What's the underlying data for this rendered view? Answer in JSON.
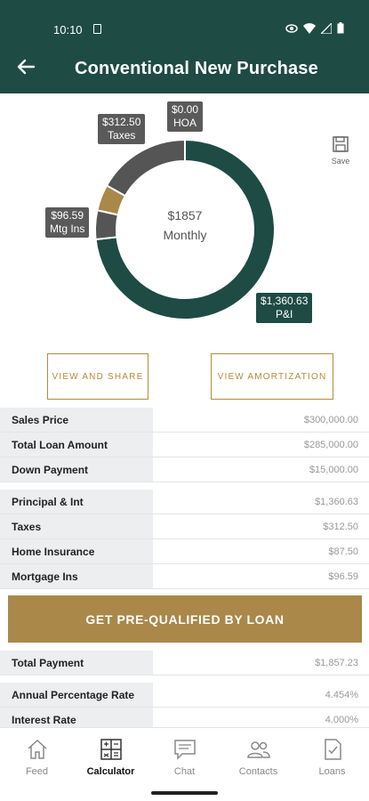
{
  "status_bar": {
    "time": "10:10"
  },
  "header": {
    "title": "Conventional New Purchase"
  },
  "chart_data": {
    "type": "pie",
    "donut": true,
    "center_amount": "$1857",
    "center_label": "Monthly",
    "slices": [
      {
        "name": "P&I",
        "label": "$1,360.63",
        "value": 1360.63,
        "color": "#1f4b45"
      },
      {
        "name": "Mtg Ins",
        "label": "$96.59",
        "value": 96.59,
        "color": "#555555"
      },
      {
        "name": "Home Insurance",
        "label": "",
        "value": 87.5,
        "color": "#a9884a"
      },
      {
        "name": "Taxes",
        "label": "$312.50",
        "value": 312.5,
        "color": "#555555"
      },
      {
        "name": "HOA",
        "label": "$0.00",
        "value": 0.0,
        "color": "#666666"
      }
    ]
  },
  "tags": {
    "taxes": {
      "amount": "$312.50",
      "name": "Taxes"
    },
    "hoa": {
      "amount": "$0.00",
      "name": "HOA"
    },
    "mtg_ins": {
      "amount": "$96.59",
      "name": "Mtg Ins"
    },
    "pi": {
      "amount": "$1,360.63",
      "name": "P&I"
    }
  },
  "save_label": "Save",
  "buttons": {
    "view_share": "VIEW AND SHARE",
    "view_amortization": "VIEW AMORTIZATION",
    "pre_qualified": "GET PRE-QUALIFIED BY LOAN"
  },
  "loan_rows": [
    {
      "label": "Sales Price",
      "value": "$300,000.00"
    },
    {
      "label": "Total Loan Amount",
      "value": "$285,000.00"
    },
    {
      "label": "Down Payment",
      "value": "$15,000.00"
    }
  ],
  "payment_rows": [
    {
      "label": "Principal & Int",
      "value": "$1,360.63"
    },
    {
      "label": "Taxes",
      "value": "$312.50"
    },
    {
      "label": "Home Insurance",
      "value": "$87.50"
    },
    {
      "label": "Mortgage Ins",
      "value": "$96.59"
    }
  ],
  "total_row": {
    "label": "Total Payment",
    "value": "$1,857.23"
  },
  "rate_rows": [
    {
      "label": "Annual Percentage Rate",
      "value": "4.454%"
    },
    {
      "label": "Interest Rate",
      "value": "4.000%"
    }
  ],
  "nav": [
    {
      "label": "Feed",
      "icon": "home-icon",
      "active": false
    },
    {
      "label": "Calculator",
      "icon": "calculator-icon",
      "active": true
    },
    {
      "label": "Chat",
      "icon": "chat-icon",
      "active": false
    },
    {
      "label": "Contacts",
      "icon": "contacts-icon",
      "active": false
    },
    {
      "label": "Loans",
      "icon": "document-icon",
      "active": false
    }
  ]
}
